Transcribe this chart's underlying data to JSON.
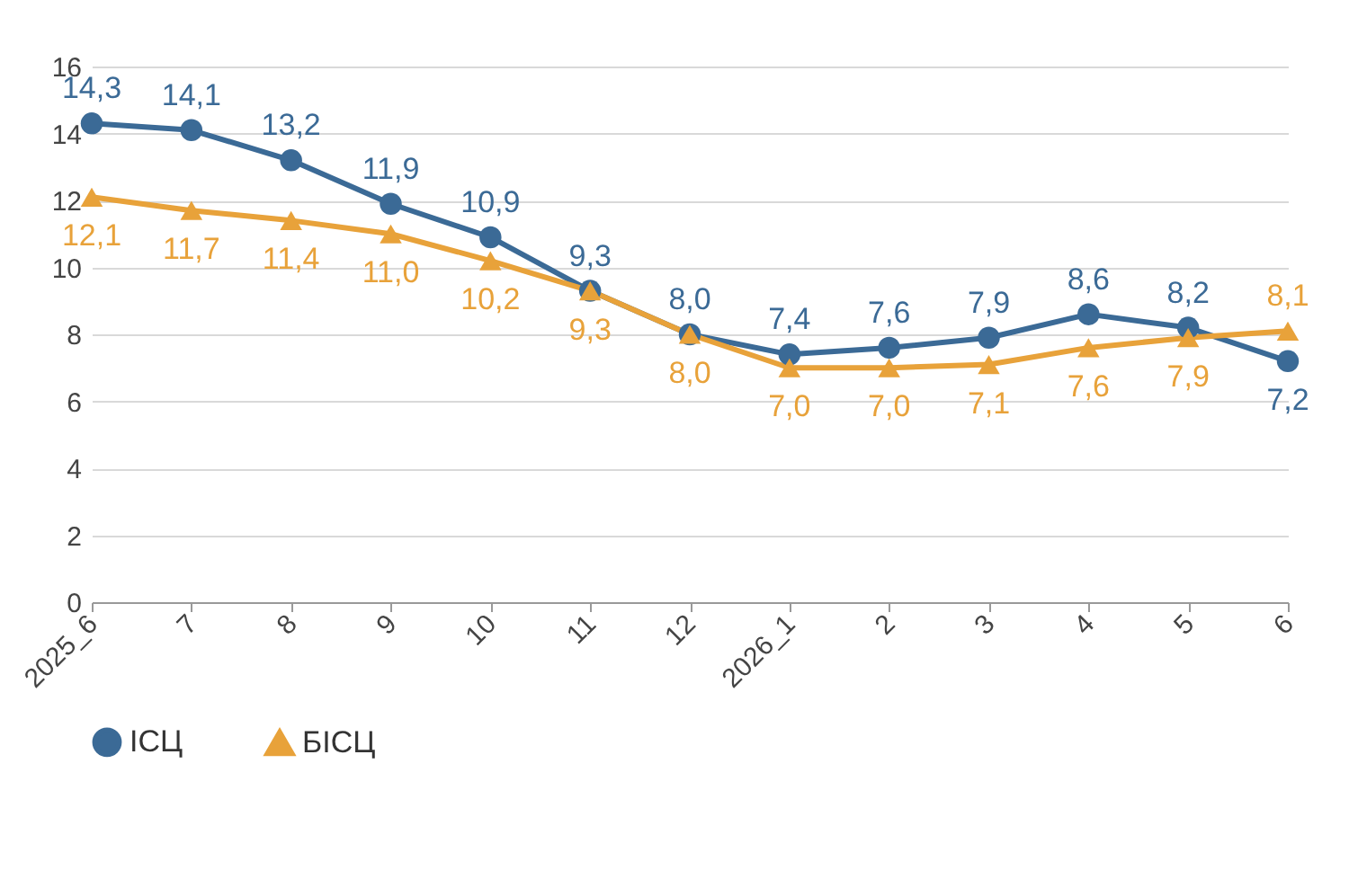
{
  "chart_data": {
    "type": "line",
    "categories": [
      "2025_6",
      "7",
      "8",
      "9",
      "10",
      "11",
      "12",
      "2026_1",
      "2",
      "3",
      "4",
      "5",
      "6"
    ],
    "series": [
      {
        "name": "ІСЦ",
        "color": "#3b6a96",
        "marker": "circle",
        "values": [
          14.3,
          14.1,
          13.2,
          11.9,
          10.9,
          9.3,
          8.0,
          7.4,
          7.6,
          7.9,
          8.6,
          8.2,
          7.2
        ],
        "value_labels": [
          "14,3",
          "14,1",
          "13,2",
          "11,9",
          "10,9",
          "9,3",
          "8,0",
          "7,4",
          "7,6",
          "7,9",
          "8,6",
          "8,2",
          "7,2"
        ]
      },
      {
        "name": "БІСЦ",
        "color": "#e8a23a",
        "marker": "triangle",
        "values": [
          12.1,
          11.7,
          11.4,
          11.0,
          10.2,
          9.3,
          8.0,
          7.0,
          7.0,
          7.1,
          7.6,
          7.9,
          8.1
        ],
        "value_labels": [
          "12,1",
          "11,7",
          "11,4",
          "11,0",
          "10,2",
          "9,3",
          "8,0",
          "7,0",
          "7,0",
          "7,1",
          "7,6",
          "7,9",
          "8,1"
        ]
      }
    ],
    "ylim": [
      0,
      16
    ],
    "yticks": [
      0,
      2,
      4,
      6,
      8,
      10,
      12,
      14,
      16
    ],
    "grid": "y",
    "legend": "bottom"
  }
}
